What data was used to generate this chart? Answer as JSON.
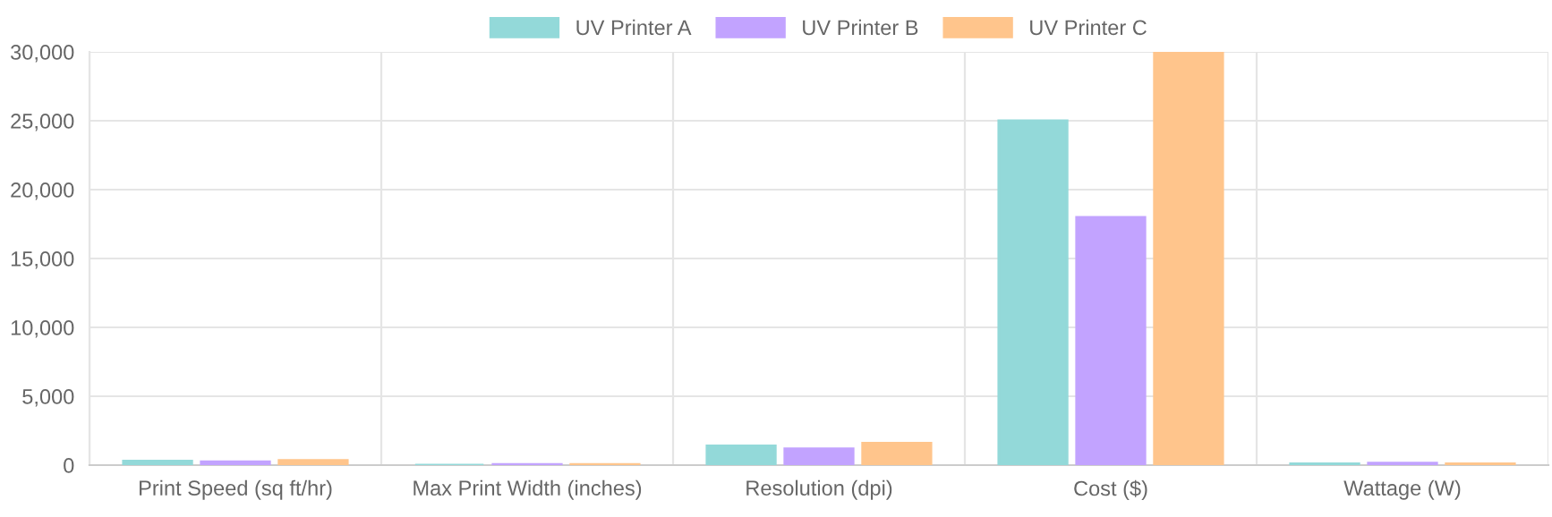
{
  "chart_data": {
    "type": "bar",
    "categories": [
      "Print Speed (sq ft/hr)",
      "Max Print Width (inches)",
      "Resolution (dpi)",
      "Cost ($)",
      "Wattage (W)"
    ],
    "series": [
      {
        "name": "UV Printer A",
        "color": "#93d9d9",
        "values": [
          300,
          null,
          1400,
          25000,
          100
        ]
      },
      {
        "name": "UV Printer B",
        "color": "#c2a3ff",
        "values": [
          250,
          64,
          1200,
          18000,
          150
        ]
      },
      {
        "name": "UV Printer C",
        "color": "#ffc58c",
        "values": [
          350,
          64,
          1600,
          30000,
          100
        ]
      }
    ],
    "ylim": [
      0,
      30000
    ],
    "yticks": [
      {
        "value": 0,
        "label": "0"
      },
      {
        "value": 5000,
        "label": "5,000"
      },
      {
        "value": 10000,
        "label": "10,000"
      },
      {
        "value": 15000,
        "label": "15,000"
      },
      {
        "value": 20000,
        "label": "20,000"
      },
      {
        "value": 25000,
        "label": "25,000"
      },
      {
        "value": 30000,
        "label": "30,000"
      }
    ],
    "grid": true,
    "legend": "top"
  }
}
